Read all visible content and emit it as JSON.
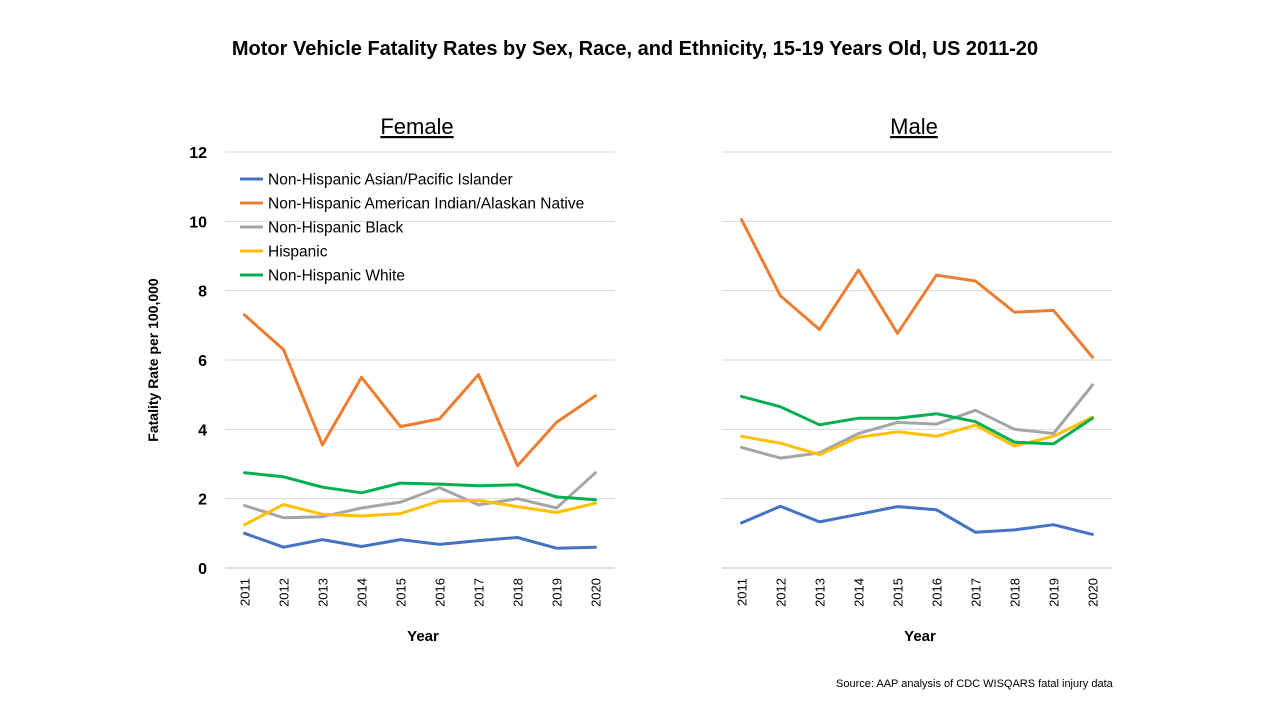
{
  "title": "Motor Vehicle Fatality Rates by Sex, Race, and Ethnicity, 15-19 Years Old, US 2011-20",
  "source": "Source:  AAP analysis of CDC WISQARS fatal injury data",
  "chart_data": [
    {
      "type": "line",
      "title": "Female",
      "xlabel": "Year",
      "ylabel": "Fatality Rate per 100,000",
      "ylim": [
        0,
        12
      ],
      "yticks": [
        "0",
        "2",
        "4",
        "6",
        "8",
        "10",
        "12"
      ],
      "x": [
        "2011",
        "2012",
        "2013",
        "2014",
        "2015",
        "2016",
        "2017",
        "2018",
        "2019",
        "2020"
      ],
      "grid": true,
      "legend": "top-left",
      "series": [
        {
          "name": "Non-Hispanic Asian/Pacific  Islander",
          "color": "#4472c4",
          "values": [
            1.0,
            0.6,
            0.82,
            0.62,
            0.82,
            0.68,
            0.79,
            0.88,
            0.57,
            0.6
          ]
        },
        {
          "name": "Non-Hispanic American Indian/Alaskan Native",
          "color": "#ed7d31",
          "values": [
            7.3,
            6.3,
            3.55,
            5.5,
            4.08,
            4.3,
            5.58,
            2.95,
            4.2,
            4.97
          ]
        },
        {
          "name": "Non-Hispanic Black",
          "color": "#a5a5a5",
          "values": [
            1.8,
            1.45,
            1.48,
            1.73,
            1.9,
            2.32,
            1.82,
            2.0,
            1.73,
            2.75
          ]
        },
        {
          "name": "Hispanic",
          "color": "#ffc000",
          "values": [
            1.25,
            1.83,
            1.55,
            1.5,
            1.57,
            1.93,
            1.95,
            1.77,
            1.6,
            1.87
          ]
        },
        {
          "name": "Non-Hispanic White",
          "color": "#00b050",
          "values": [
            2.75,
            2.63,
            2.33,
            2.17,
            2.45,
            2.42,
            2.37,
            2.4,
            2.05,
            1.97
          ]
        }
      ]
    },
    {
      "type": "line",
      "title": "Male",
      "xlabel": "Year",
      "ylim": [
        0,
        12
      ],
      "x": [
        "2011",
        "2012",
        "2013",
        "2014",
        "2015",
        "2016",
        "2017",
        "2018",
        "2019",
        "2020"
      ],
      "grid": true,
      "series": [
        {
          "name": "Non-Hispanic Asian/Pacific  Islander",
          "color": "#4472c4",
          "values": [
            1.3,
            1.78,
            1.33,
            1.55,
            1.77,
            1.68,
            1.03,
            1.1,
            1.25,
            0.97
          ]
        },
        {
          "name": "Non-Hispanic American Indian/Alaskan Native",
          "color": "#ed7d31",
          "values": [
            10.05,
            7.85,
            6.88,
            8.6,
            6.77,
            8.45,
            8.28,
            7.38,
            7.43,
            6.08
          ]
        },
        {
          "name": "Non-Hispanic Black",
          "color": "#a5a5a5",
          "values": [
            3.48,
            3.17,
            3.32,
            3.88,
            4.2,
            4.15,
            4.55,
            4.0,
            3.88,
            5.28
          ]
        },
        {
          "name": "Hispanic",
          "color": "#ffc000",
          "values": [
            3.8,
            3.6,
            3.27,
            3.77,
            3.93,
            3.8,
            4.12,
            3.52,
            3.8,
            4.35
          ]
        },
        {
          "name": "Non-Hispanic White",
          "color": "#00b050",
          "values": [
            4.95,
            4.65,
            4.13,
            4.32,
            4.32,
            4.45,
            4.22,
            3.63,
            3.58,
            4.32
          ]
        }
      ]
    }
  ]
}
